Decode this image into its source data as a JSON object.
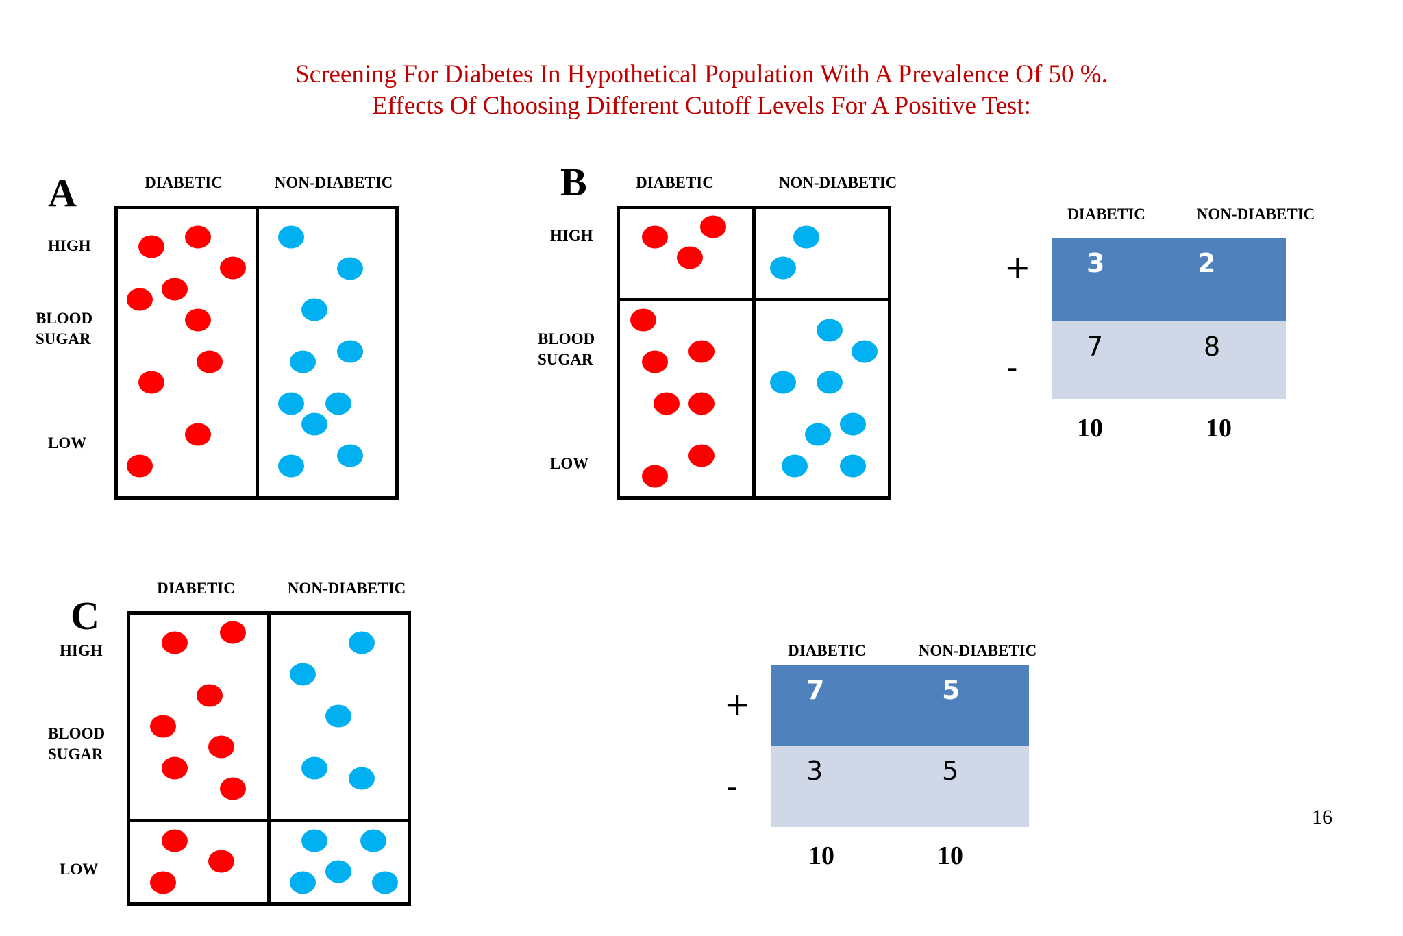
{
  "title": {
    "line1": "Screening For Diabetes In Hypothetical Population With A Prevalence Of 50 %.",
    "line2": "Effects Of Choosing Different Cutoff Levels For A Positive Test:"
  },
  "common": {
    "diabetic": "DIABETIC",
    "non_diabetic": "NON-DIABETIC",
    "high": "HIGH",
    "blood": "BLOOD",
    "sugar": "SUGAR",
    "low": "LOW"
  },
  "panels": {
    "a": {
      "letter": "A"
    },
    "b": {
      "letter": "B",
      "table": {
        "col1": "DIABETIC",
        "col2": "NON-DIABETIC",
        "pos_sign": "+",
        "neg_sign": "-",
        "pos_diabetic": "3",
        "pos_non_diabetic": "2",
        "neg_diabetic": "7",
        "neg_non_diabetic": "8",
        "total_diabetic": "10",
        "total_non_diabetic": "10"
      }
    },
    "c": {
      "letter": "C",
      "table": {
        "col1": "DIABETIC",
        "col2": "NON-DIABETIC",
        "pos_sign": "+",
        "neg_sign": "-",
        "pos_diabetic": "7",
        "pos_non_diabetic": "5",
        "neg_diabetic": "3",
        "neg_non_diabetic": "5",
        "total_diabetic": "10",
        "total_non_diabetic": "10"
      }
    }
  },
  "page_number": "16",
  "colors": {
    "title": "#c00000",
    "diabetic_dot": "#ff0000",
    "non_diabetic_dot": "#00b0f0",
    "positive_row": "#4f81bd",
    "negative_row": "#d0d8e8"
  }
}
